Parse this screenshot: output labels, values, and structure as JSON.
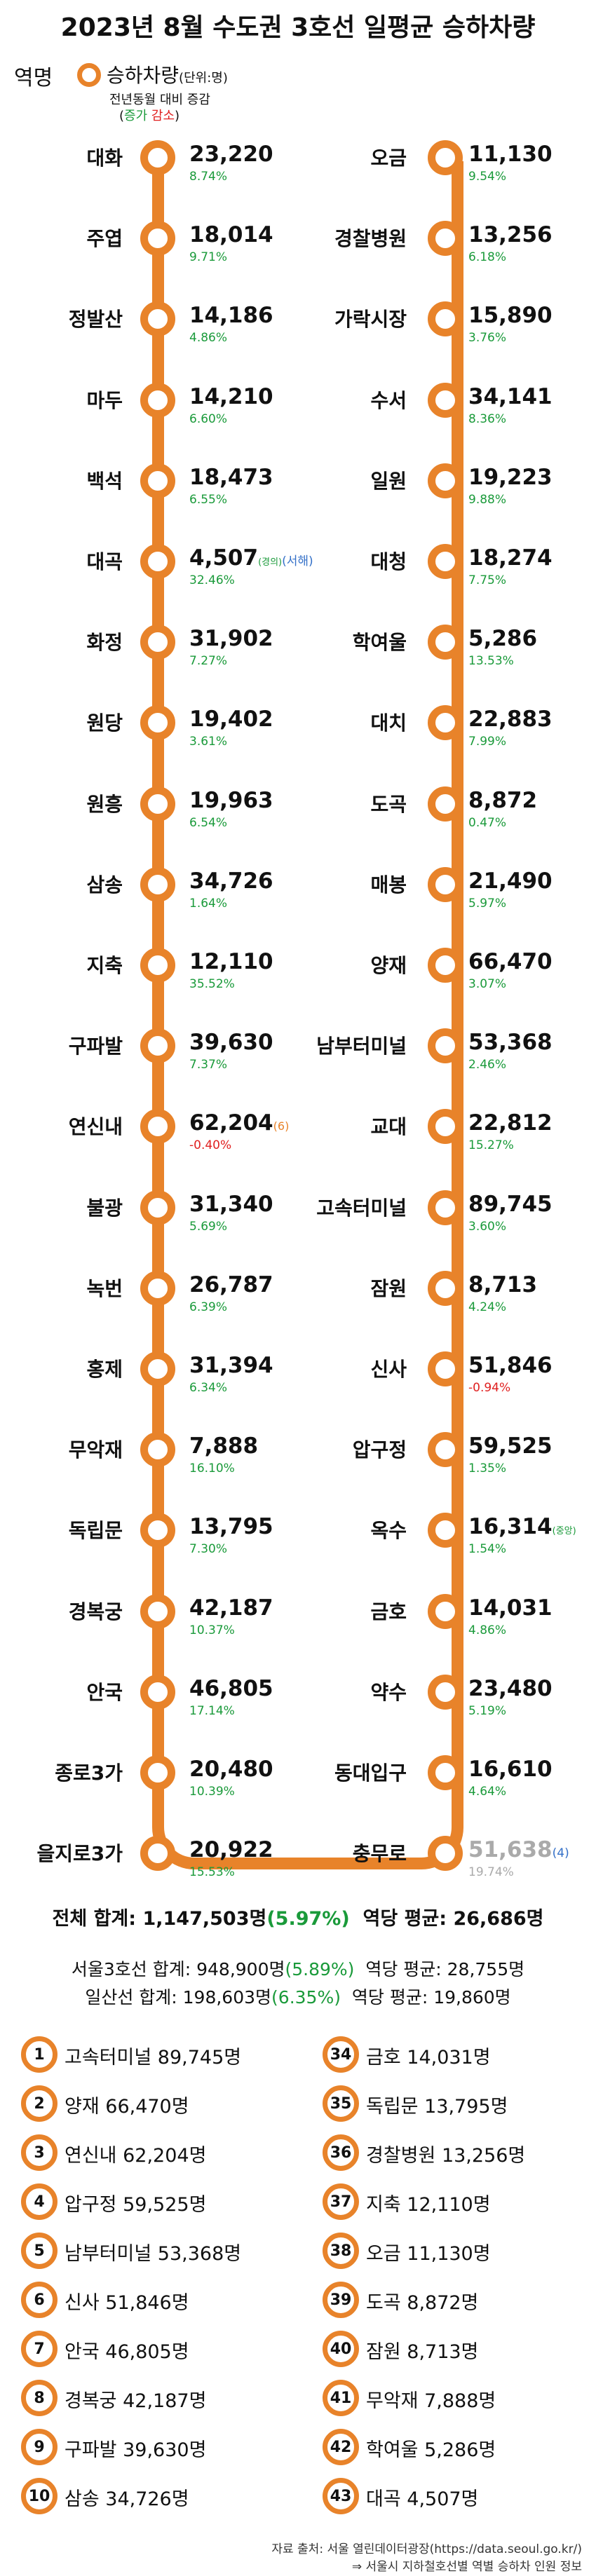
{
  "title": "2023년 8월 수도권 3호선 일평균 승하차량",
  "legend": {
    "station_label": "역명",
    "main_label": "승하차량",
    "unit": "(단위:명)",
    "sub": "전년동월 대비 증감",
    "up": "증가",
    "down": "감소"
  },
  "left_stations": [
    {
      "name": "대화",
      "value": "23,220",
      "pct": "8.74%",
      "dir": "up"
    },
    {
      "name": "주엽",
      "value": "18,014",
      "pct": "9.71%",
      "dir": "up"
    },
    {
      "name": "정발산",
      "value": "14,186",
      "pct": "4.86%",
      "dir": "up"
    },
    {
      "name": "마두",
      "value": "14,210",
      "pct": "6.60%",
      "dir": "up"
    },
    {
      "name": "백석",
      "value": "18,473",
      "pct": "6.55%",
      "dir": "up"
    },
    {
      "name": "대곡",
      "value": "4,507",
      "pct": "32.46%",
      "dir": "up",
      "note_a": "(경의)",
      "note_b": "(서해)"
    },
    {
      "name": "화정",
      "value": "31,902",
      "pct": "7.27%",
      "dir": "up"
    },
    {
      "name": "원당",
      "value": "19,402",
      "pct": "3.61%",
      "dir": "up"
    },
    {
      "name": "원흥",
      "value": "19,963",
      "pct": "6.54%",
      "dir": "up"
    },
    {
      "name": "삼송",
      "value": "34,726",
      "pct": "1.64%",
      "dir": "up"
    },
    {
      "name": "지축",
      "value": "12,110",
      "pct": "35.52%",
      "dir": "up"
    },
    {
      "name": "구파발",
      "value": "39,630",
      "pct": "7.37%",
      "dir": "up"
    },
    {
      "name": "연신내",
      "value": "62,204",
      "pct": "-0.40%",
      "dir": "down",
      "note_o": "(6)"
    },
    {
      "name": "불광",
      "value": "31,340",
      "pct": "5.69%",
      "dir": "up"
    },
    {
      "name": "녹번",
      "value": "26,787",
      "pct": "6.39%",
      "dir": "up"
    },
    {
      "name": "홍제",
      "value": "31,394",
      "pct": "6.34%",
      "dir": "up"
    },
    {
      "name": "무악재",
      "value": "7,888",
      "pct": "16.10%",
      "dir": "up"
    },
    {
      "name": "독립문",
      "value": "13,795",
      "pct": "7.30%",
      "dir": "up"
    },
    {
      "name": "경복궁",
      "value": "42,187",
      "pct": "10.37%",
      "dir": "up"
    },
    {
      "name": "안국",
      "value": "46,805",
      "pct": "17.14%",
      "dir": "up"
    },
    {
      "name": "종로3가",
      "value": "20,480",
      "pct": "10.39%",
      "dir": "up"
    },
    {
      "name": "을지로3가",
      "value": "20,922",
      "pct": "15.53%",
      "dir": "up"
    }
  ],
  "right_stations": [
    {
      "name": "오금",
      "value": "11,130",
      "pct": "9.54%",
      "dir": "up"
    },
    {
      "name": "경찰병원",
      "value": "13,256",
      "pct": "6.18%",
      "dir": "up"
    },
    {
      "name": "가락시장",
      "value": "15,890",
      "pct": "3.76%",
      "dir": "up"
    },
    {
      "name": "수서",
      "value": "34,141",
      "pct": "8.36%",
      "dir": "up"
    },
    {
      "name": "일원",
      "value": "19,223",
      "pct": "9.88%",
      "dir": "up"
    },
    {
      "name": "대청",
      "value": "18,274",
      "pct": "7.75%",
      "dir": "up"
    },
    {
      "name": "학여울",
      "value": "5,286",
      "pct": "13.53%",
      "dir": "up"
    },
    {
      "name": "대치",
      "value": "22,883",
      "pct": "7.99%",
      "dir": "up"
    },
    {
      "name": "도곡",
      "value": "8,872",
      "pct": "0.47%",
      "dir": "up"
    },
    {
      "name": "매봉",
      "value": "21,490",
      "pct": "5.97%",
      "dir": "up"
    },
    {
      "name": "양재",
      "value": "66,470",
      "pct": "3.07%",
      "dir": "up"
    },
    {
      "name": "남부터미널",
      "value": "53,368",
      "pct": "2.46%",
      "dir": "up"
    },
    {
      "name": "교대",
      "value": "22,812",
      "pct": "15.27%",
      "dir": "up"
    },
    {
      "name": "고속터미널",
      "value": "89,745",
      "pct": "3.60%",
      "dir": "up"
    },
    {
      "name": "잠원",
      "value": "8,713",
      "pct": "4.24%",
      "dir": "up"
    },
    {
      "name": "신사",
      "value": "51,846",
      "pct": "-0.94%",
      "dir": "down"
    },
    {
      "name": "압구정",
      "value": "59,525",
      "pct": "1.35%",
      "dir": "up"
    },
    {
      "name": "옥수",
      "value": "16,314",
      "pct": "1.54%",
      "dir": "up",
      "note_a": "(중앙)"
    },
    {
      "name": "금호",
      "value": "14,031",
      "pct": "4.86%",
      "dir": "up"
    },
    {
      "name": "약수",
      "value": "23,480",
      "pct": "5.19%",
      "dir": "up"
    },
    {
      "name": "동대입구",
      "value": "16,610",
      "pct": "4.64%",
      "dir": "up"
    },
    {
      "name": "충무로",
      "value": "51,638",
      "pct": "19.74%",
      "dir": "gray",
      "note_b": "(4)"
    }
  ],
  "summary": {
    "total_label": "전체 합계: 1,147,503명",
    "total_pct": "(5.97%)",
    "avg_label": "역당 평균: 26,686명",
    "seoul_label": "서울3호선 합계: 948,900명",
    "seoul_pct": "(5.89%)",
    "seoul_avg": "역당 평균: 28,755명",
    "ilsan_label": "일산선 합계: 198,603명",
    "ilsan_pct": "(6.35%)",
    "ilsan_avg": "역당 평균: 19,860명"
  },
  "ranks_top": [
    {
      "num": "1",
      "text": "고속터미널 89,745명"
    },
    {
      "num": "2",
      "text": "양재 66,470명"
    },
    {
      "num": "3",
      "text": "연신내 62,204명"
    },
    {
      "num": "4",
      "text": "압구정 59,525명"
    },
    {
      "num": "5",
      "text": "남부터미널 53,368명"
    },
    {
      "num": "6",
      "text": "신사 51,846명"
    },
    {
      "num": "7",
      "text": "안국 46,805명"
    },
    {
      "num": "8",
      "text": "경복궁 42,187명"
    },
    {
      "num": "9",
      "text": "구파발 39,630명"
    },
    {
      "num": "10",
      "text": "삼송 34,726명"
    }
  ],
  "ranks_bottom": [
    {
      "num": "34",
      "text": "금호 14,031명"
    },
    {
      "num": "35",
      "text": "독립문 13,795명"
    },
    {
      "num": "36",
      "text": "경찰병원 13,256명"
    },
    {
      "num": "37",
      "text": "지축 12,110명"
    },
    {
      "num": "38",
      "text": "오금 11,130명"
    },
    {
      "num": "39",
      "text": "도곡 8,872명"
    },
    {
      "num": "40",
      "text": "잠원 8,713명"
    },
    {
      "num": "41",
      "text": "무악재 7,888명"
    },
    {
      "num": "42",
      "text": "학여울 5,286명"
    },
    {
      "num": "43",
      "text": "대곡 4,507명"
    }
  ],
  "source": {
    "line1": "자료 출처: 서울 열린데이터광장(https://data.seoul.go.kr/)",
    "line2": "⇒ 서울시 지하철호선별 역별 승하차 인원 정보"
  },
  "colors": {
    "line": "#e8832a",
    "up": "#1a9a3a",
    "down": "#e02020",
    "note_blue": "#3470c8"
  }
}
